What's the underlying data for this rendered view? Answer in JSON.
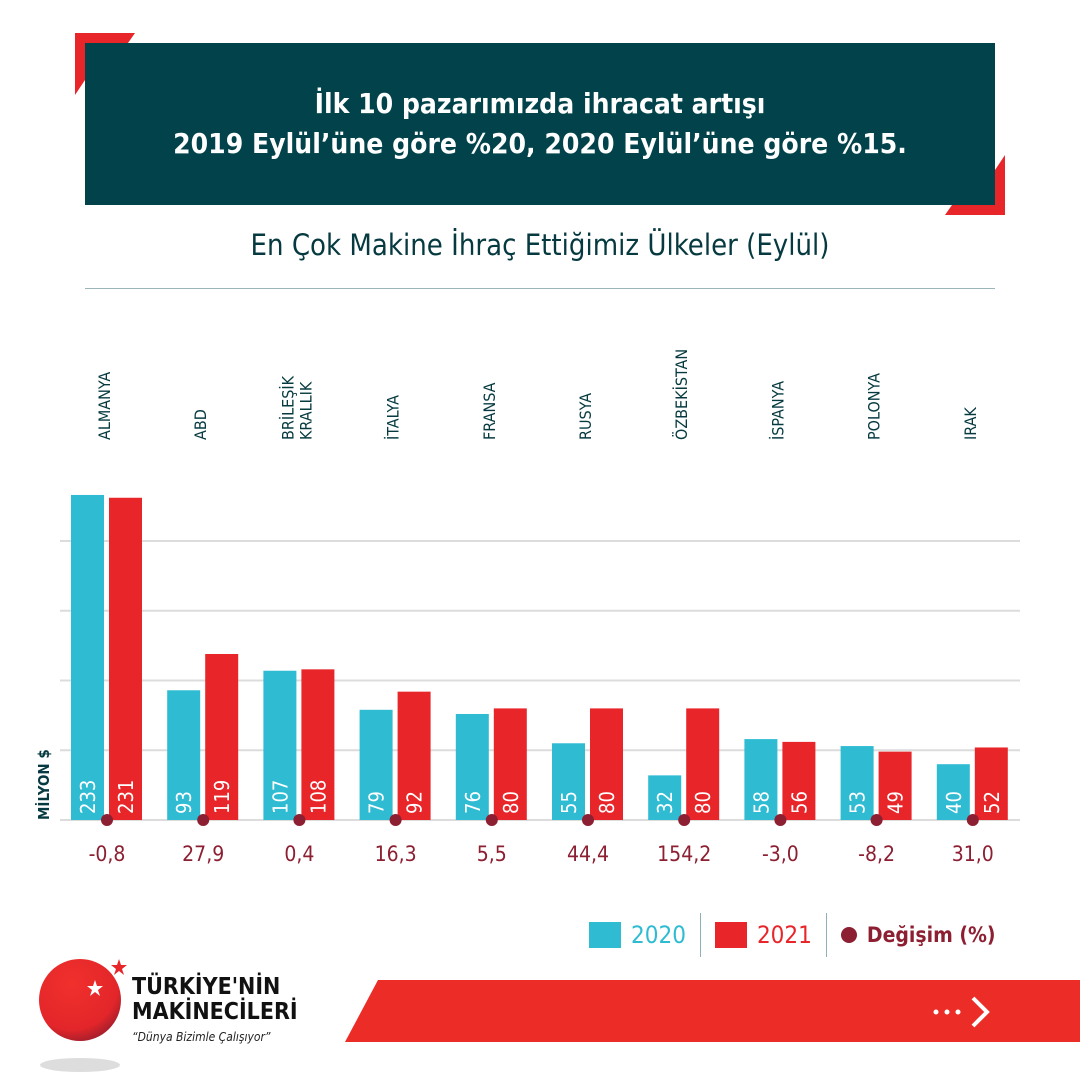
{
  "header": {
    "line1": "İlk 10 pazarımızda ihracat artışı",
    "line2": "2019 Eylül’üne göre %20, 2020 Eylül’üne göre %15."
  },
  "colors": {
    "c2020": "#2fbcd3",
    "c2021": "#e8262a",
    "change": "#8c1f31",
    "header_bg": "#02434b"
  },
  "chart_data": {
    "type": "bar",
    "title": "En Çok Makine İhraç Ettiğimiz Ülkeler (Eylül)",
    "ylabel": "MİLYON $",
    "ylim": [
      0,
      250
    ],
    "grid": true,
    "legend_position": "bottom-right",
    "categories": [
      "ALMANYA",
      "ABD",
      "BRİLEŞİK KRALLIK",
      "İTALYA",
      "FRANSA",
      "RUSYA",
      "ÖZBEKİSTAN",
      "İSPANYA",
      "POLONYA",
      "IRAK"
    ],
    "series": [
      {
        "name": "2020",
        "values": [
          233,
          93,
          107,
          79,
          76,
          55,
          32,
          58,
          53,
          40
        ]
      },
      {
        "name": "2021",
        "values": [
          231,
          119,
          108,
          92,
          80,
          80,
          80,
          56,
          49,
          52
        ]
      }
    ],
    "change_name": "Değişim (%)",
    "change_labels": [
      "-0,8",
      "27,9",
      "0,4",
      "16,3",
      "5,5",
      "44,4",
      "154,2",
      "-3,0",
      "-8,2",
      "31,0"
    ]
  },
  "brand": {
    "name1": "TÜRKİYE'NİN",
    "name2": "MAKİNECİLERİ",
    "slogan": "“Dünya Bizimle Çalışıyor”"
  }
}
